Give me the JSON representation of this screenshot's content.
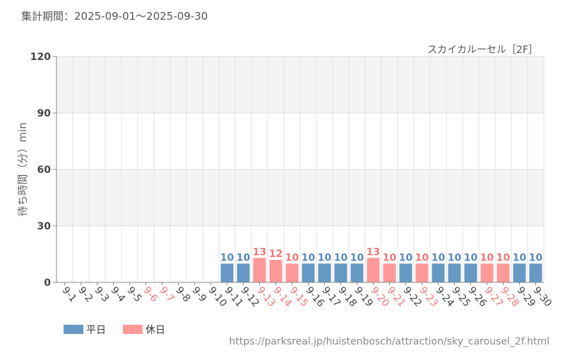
{
  "header": {
    "period": "集計期間：2025-09-01〜2025-09-30"
  },
  "chart_data": {
    "type": "bar",
    "subtitle": "スカイカルーセル［2F］",
    "ylabel": "待ち時間（分）min",
    "xlabel": "",
    "ylim": [
      0,
      120
    ],
    "yticks": [
      0,
      30,
      60,
      90,
      120
    ],
    "grid": true,
    "bands": "alternating",
    "legend_position": "bottom-left",
    "colors": {
      "weekday": "#6699c4",
      "holiday": "#ff9999",
      "weekday_label": "#5588bb",
      "holiday_label": "#ee7777",
      "tick_default": "#444444"
    },
    "categories": [
      "9-1",
      "9-2",
      "9-3",
      "9-4",
      "9-5",
      "9-6",
      "9-7",
      "9-8",
      "9-9",
      "9-10",
      "9-11",
      "9-12",
      "9-13",
      "9-14",
      "9-15",
      "9-16",
      "9-17",
      "9-18",
      "9-19",
      "9-20",
      "9-21",
      "9-22",
      "9-23",
      "9-24",
      "9-25",
      "9-26",
      "9-27",
      "9-28",
      "9-29",
      "9-30"
    ],
    "day_type": [
      "weekday",
      "weekday",
      "weekday",
      "weekday",
      "weekday",
      "holiday",
      "holiday",
      "weekday",
      "weekday",
      "weekday",
      "weekday",
      "weekday",
      "holiday",
      "holiday",
      "holiday",
      "weekday",
      "weekday",
      "weekday",
      "weekday",
      "holiday",
      "holiday",
      "weekday",
      "holiday",
      "weekday",
      "weekday",
      "weekday",
      "holiday",
      "holiday",
      "weekday",
      "weekday"
    ],
    "values": [
      null,
      null,
      null,
      null,
      null,
      null,
      null,
      null,
      null,
      null,
      10,
      10,
      13,
      12,
      10,
      10,
      10,
      10,
      10,
      13,
      10,
      10,
      10,
      10,
      10,
      10,
      10,
      10,
      10,
      10
    ],
    "series": [
      {
        "name": "平日",
        "key": "weekday"
      },
      {
        "name": "休日",
        "key": "holiday"
      }
    ]
  },
  "footer": {
    "source": "https://parksreal.jp/huistenbosch/attraction/sky_carousel_2f.html"
  }
}
